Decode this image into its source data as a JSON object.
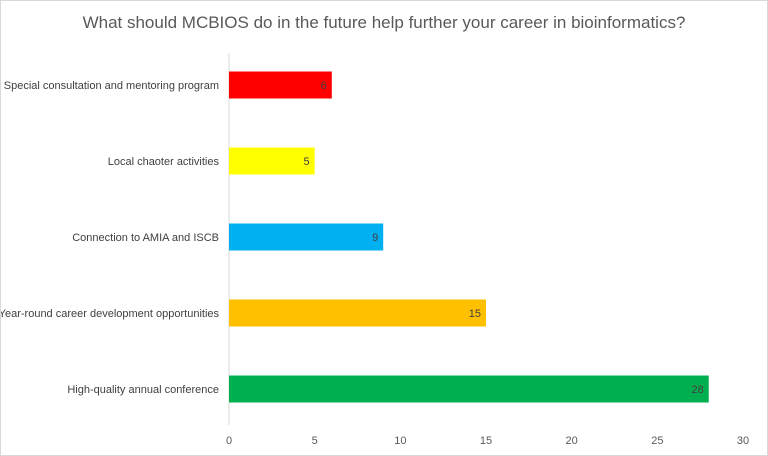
{
  "chart_data": {
    "type": "bar",
    "orientation": "horizontal",
    "title": "What should MCBIOS do in the future help further your career in bioinformatics?",
    "xlabel": "",
    "ylabel": "",
    "categories": [
      "Special consultation and mentoring program",
      "Local chaoter activities",
      "Connection to AMIA and ISCB",
      "Year-round career development opportunities",
      "High-quality annual conference"
    ],
    "values": [
      6,
      5,
      9,
      15,
      28
    ],
    "colors": [
      "#ff0000",
      "#ffff00",
      "#00b0f0",
      "#ffc000",
      "#00b050"
    ],
    "xlim": [
      0,
      30
    ],
    "xticks": [
      0,
      5,
      10,
      15,
      20,
      25,
      30
    ],
    "grid": false,
    "legend": "none",
    "data_labels": true
  }
}
